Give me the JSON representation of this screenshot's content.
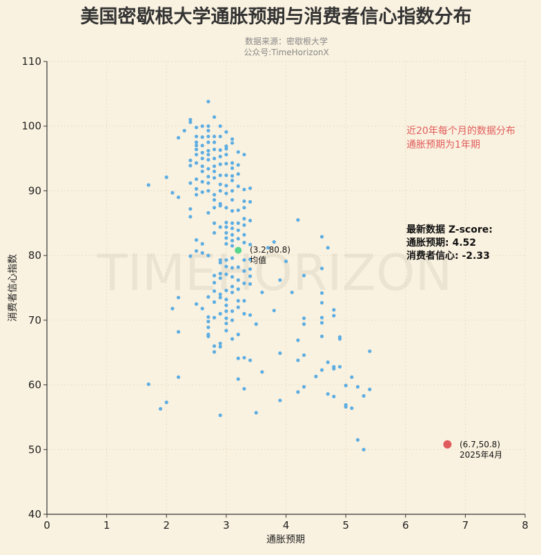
{
  "chart_data": {
    "type": "scatter",
    "title": "美国密歇根大学通胀预期与消费者信心指数分布",
    "subtitle": [
      "数据来源：密歇根大学",
      "公众号:TimeHorizonX"
    ],
    "xlabel": "通胀预期",
    "ylabel": "消费者信心指数",
    "xlim": [
      0,
      8
    ],
    "ylim": [
      40,
      110
    ],
    "xticks": [
      0,
      1,
      2,
      3,
      4,
      5,
      6,
      7,
      8
    ],
    "yticks": [
      40,
      50,
      60,
      70,
      80,
      90,
      100,
      110
    ],
    "grid": true,
    "watermark": "TIMEHORIZON",
    "colors": {
      "background": "#faf2e0",
      "points": "#5dade2",
      "mean": "#58d68d",
      "latest": "#e05c5c",
      "note": "#e05c5c"
    },
    "points_by_x": [
      {
        "x": 1.7,
        "y": [
          90.9,
          60.1
        ]
      },
      {
        "x": 1.9,
        "y": [
          56.3
        ]
      },
      {
        "x": 2.0,
        "y": [
          92.1,
          57.3
        ]
      },
      {
        "x": 2.1,
        "y": [
          89.7,
          71.8
        ]
      },
      {
        "x": 2.2,
        "y": [
          98.2,
          89.0,
          73.5,
          68.2,
          61.2
        ]
      },
      {
        "x": 2.3,
        "y": [
          99.3
        ]
      },
      {
        "x": 2.4,
        "y": [
          101.0,
          100.6,
          94.7,
          93.9,
          91.2,
          87.2,
          86.0,
          79.9
        ]
      },
      {
        "x": 2.5,
        "y": [
          99.8,
          98.4,
          97.5,
          97.0,
          96.4,
          95.6,
          94.3,
          91.8,
          90.3,
          89.4,
          82.4,
          80.7,
          72.5
        ]
      },
      {
        "x": 2.6,
        "y": [
          100.0,
          98.3,
          97.0,
          95.9,
          95.0,
          93.8,
          93.0,
          91.4,
          89.8,
          81.8,
          80.4,
          71.8
        ]
      },
      {
        "x": 2.7,
        "y": [
          103.8,
          100.0,
          99.3,
          98.4,
          97.5,
          96.2,
          95.6,
          94.8,
          93.4,
          92.2,
          91.2,
          90.0,
          86.6,
          80.0,
          73.6,
          70.5,
          69.8,
          68.9,
          67.8,
          67.5
        ]
      },
      {
        "x": 2.8,
        "y": [
          101.4,
          98.4,
          97.5,
          96.4,
          95.0,
          93.8,
          93.0,
          92.0,
          89.4,
          88.6,
          87.4,
          85.0,
          83.5,
          76.9,
          75.8,
          74.5,
          72.8,
          70.4,
          66.0,
          65.1
        ]
      },
      {
        "x": 2.9,
        "y": [
          100.0,
          98.4,
          96.3,
          95.3,
          94.1,
          92.4,
          91.0,
          90.0,
          88.0,
          87.7,
          84.4,
          79.3,
          78.9,
          77.2,
          76.5,
          74.0,
          73.5,
          71.0,
          66.4,
          65.9,
          55.3
        ]
      },
      {
        "x": 3.0,
        "y": [
          99.1,
          96.9,
          96.5,
          95.6,
          94.2,
          92.4,
          90.8,
          89.6,
          87.4,
          85.1,
          84.4,
          83.5,
          82.7,
          81.8,
          79.3,
          78.3,
          77.1,
          74.6,
          73.2,
          72.3,
          71.4,
          70.3,
          69.5,
          68.4
        ]
      },
      {
        "x": 3.1,
        "y": [
          98.0,
          97.4,
          94.3,
          93.5,
          92.3,
          91.6,
          90.0,
          88.6,
          86.9,
          85.0,
          84.2,
          83.2,
          82.3,
          81.5,
          79.6,
          78.1,
          76.7,
          75.2,
          74.3,
          71.4,
          70.0,
          67.1
        ]
      },
      {
        "x": 3.2,
        "y": [
          96.0,
          94.0,
          92.6,
          90.7,
          87.0,
          85.0,
          83.9,
          82.6,
          78.2,
          76.2,
          74.8,
          73.0,
          72.0,
          67.8,
          64.1,
          60.9
        ]
      },
      {
        "x": 3.3,
        "y": [
          95.6,
          90.2,
          88.4,
          87.4,
          85.7,
          84.7,
          83.2,
          82.0,
          79.3,
          77.6,
          75.7,
          73.0,
          71.0,
          64.2,
          59.4
        ]
      },
      {
        "x": 3.4,
        "y": [
          90.4,
          88.3,
          85.4,
          81.7,
          79.4,
          77.9,
          76.8,
          75.6,
          70.8,
          63.8
        ]
      },
      {
        "x": 3.5,
        "y": [
          69.4,
          55.7
        ]
      },
      {
        "x": 3.6,
        "y": [
          74.3,
          62.0
        ]
      },
      {
        "x": 3.7,
        "y": [
          81.2
        ]
      },
      {
        "x": 3.8,
        "y": [
          82.1,
          71.5
        ]
      },
      {
        "x": 3.9,
        "y": [
          76.2,
          64.9,
          57.6
        ]
      },
      {
        "x": 4.0,
        "y": [
          79.1
        ]
      },
      {
        "x": 4.1,
        "y": [
          74.3
        ]
      },
      {
        "x": 4.2,
        "y": [
          85.5,
          66.9,
          63.8,
          58.9
        ]
      },
      {
        "x": 4.3,
        "y": [
          76.9,
          70.3,
          69.4,
          64.6,
          59.7
        ]
      },
      {
        "x": 4.5,
        "y": [
          61.3
        ]
      },
      {
        "x": 4.6,
        "y": [
          82.9,
          78.0,
          74.2,
          72.7,
          70.4,
          69.6,
          67.5,
          62.3
        ]
      },
      {
        "x": 4.7,
        "y": [
          81.2,
          63.5,
          58.6
        ]
      },
      {
        "x": 4.8,
        "y": [
          71.6,
          70.7,
          62.8,
          62.5,
          58.2
        ]
      },
      {
        "x": 4.9,
        "y": [
          67.4,
          67.1,
          62.8
        ]
      },
      {
        "x": 5.0,
        "y": [
          59.9,
          56.9,
          56.6
        ]
      },
      {
        "x": 5.1,
        "y": [
          61.2,
          56.4
        ]
      },
      {
        "x": 5.2,
        "y": [
          59.7,
          51.5
        ]
      },
      {
        "x": 5.3,
        "y": [
          58.3,
          50.0
        ]
      },
      {
        "x": 5.4,
        "y": [
          65.2,
          59.3
        ]
      }
    ],
    "mean_point": {
      "x": 3.2,
      "y": 80.8,
      "label": "(3.2,80.8)",
      "sublabel": "均值"
    },
    "latest_point": {
      "x": 6.7,
      "y": 50.8,
      "label": "(6.7,50.8)",
      "sublabel": "2025年4月"
    },
    "annotations": {
      "note_line1": "近20年每个月的数据分布",
      "note_line2": "通胀预期为1年期",
      "z_title": "最新数据 Z-score:",
      "z_inflation": "通胀预期: 4.52",
      "z_confidence": "消费者信心: -2.33"
    }
  }
}
